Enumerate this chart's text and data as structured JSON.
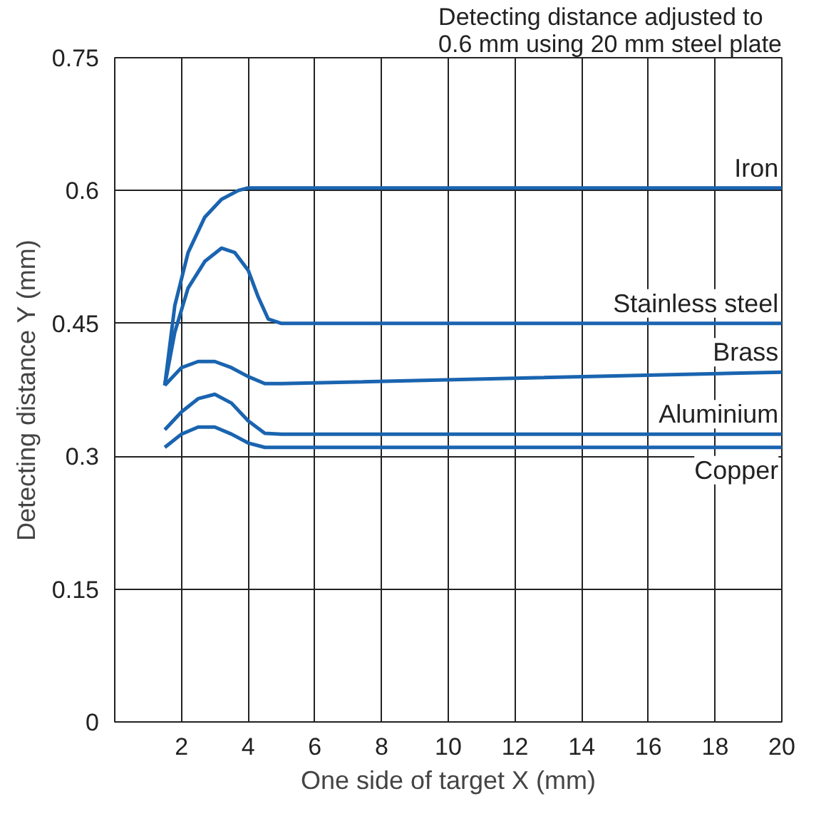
{
  "chart_data": {
    "type": "line",
    "xlabel": "One side of target X (mm)",
    "ylabel": "Detecting distance Y (mm)",
    "annotations": [
      "Detecting distance adjusted to\n0.6 mm using 20 mm steel plate"
    ],
    "xlim": [
      0,
      20
    ],
    "xticks": [
      2,
      4,
      6,
      8,
      10,
      12,
      14,
      16,
      18,
      20
    ],
    "ylim": [
      0,
      0.75
    ],
    "yticks": [
      0,
      0.15,
      0.3,
      0.45,
      0.6,
      0.75
    ],
    "grid": true,
    "legend": false,
    "marker": "none",
    "line_style": "solid",
    "series": [
      {
        "name": "Iron",
        "color": "#1a64b0",
        "x": [
          1.5,
          1.8,
          2.2,
          2.7,
          3.2,
          3.7,
          4,
          20
        ],
        "values": [
          0.38,
          0.47,
          0.53,
          0.57,
          0.59,
          0.6,
          0.603,
          0.603
        ]
      },
      {
        "name": "Stainless steel",
        "color": "#1a64b0",
        "x": [
          1.5,
          1.8,
          2.2,
          2.7,
          3.2,
          3.6,
          4,
          4.3,
          4.6,
          5,
          20
        ],
        "values": [
          0.38,
          0.44,
          0.49,
          0.52,
          0.535,
          0.53,
          0.51,
          0.48,
          0.455,
          0.45,
          0.45
        ]
      },
      {
        "name": "Brass",
        "color": "#1a64b0",
        "x": [
          1.5,
          2,
          2.5,
          3,
          3.5,
          4,
          4.5,
          5,
          20
        ],
        "values": [
          0.38,
          0.4,
          0.407,
          0.407,
          0.4,
          0.39,
          0.382,
          0.382,
          0.395
        ]
      },
      {
        "name": "Aluminium",
        "color": "#1a64b0",
        "x": [
          1.5,
          2,
          2.5,
          3,
          3.5,
          4,
          4.5,
          5,
          20
        ],
        "values": [
          0.33,
          0.35,
          0.365,
          0.37,
          0.36,
          0.34,
          0.326,
          0.325,
          0.325
        ]
      },
      {
        "name": "Copper",
        "color": "#1a64b0",
        "x": [
          1.5,
          2,
          2.5,
          3,
          3.5,
          4,
          4.5,
          20
        ],
        "values": [
          0.31,
          0.325,
          0.333,
          0.333,
          0.325,
          0.315,
          0.31,
          0.31
        ]
      }
    ]
  }
}
